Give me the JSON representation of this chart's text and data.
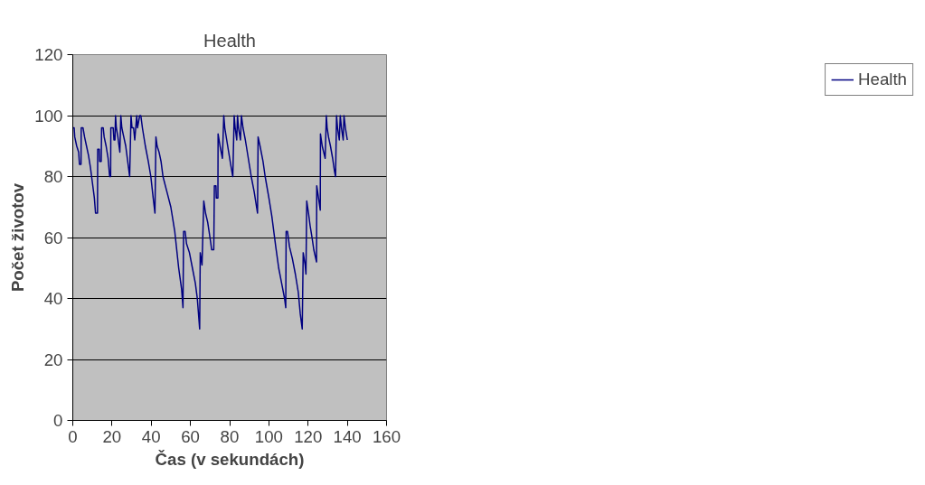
{
  "chart_data": {
    "type": "line",
    "title": "Health",
    "xlabel": "Čas (v sekundách)",
    "ylabel": "Počet životov",
    "xlim": [
      0,
      160
    ],
    "xticks": [
      0,
      20,
      40,
      60,
      80,
      100,
      120,
      140,
      160
    ],
    "ylim": [
      0,
      120
    ],
    "yticks": [
      0,
      20,
      40,
      60,
      80,
      100,
      120
    ],
    "grid": "y",
    "legend": "right",
    "marker": "none",
    "line_style": "solid",
    "series": [
      {
        "name": "Health",
        "color": "#000080",
        "x": [
          0,
          0.7,
          1,
          2,
          3,
          3.4,
          4.2,
          4.3,
          5.2,
          6,
          7,
          8,
          9,
          10,
          11,
          11.6,
          12.6,
          12.7,
          13.5,
          13.7,
          14.5,
          14.7,
          15.5,
          16,
          17,
          18,
          18.8,
          19.3,
          19.4,
          20.6,
          21,
          21.5,
          21.8,
          22.2,
          23,
          24,
          24.5,
          25,
          26,
          27,
          28,
          29,
          29.7,
          30.2,
          31,
          31.6,
          32.6,
          33,
          34.1,
          34.7,
          35.5,
          37,
          38.5,
          39.8,
          41,
          41.9,
          42.4,
          43,
          44,
          45,
          46,
          48,
          50,
          52,
          54,
          55.5,
          56.2,
          56.5,
          57.3,
          58,
          59.5,
          61,
          62.5,
          63.5,
          64.7,
          65,
          65.9,
          66.8,
          67.7,
          68.8,
          69.5,
          70.4,
          70.8,
          71.9,
          72.2,
          73,
          73.2,
          74,
          74.1,
          75.1,
          76.3,
          77,
          77.5,
          78.5,
          79.5,
          80.5,
          81.6,
          82.3,
          82.8,
          83.6,
          84,
          84.5,
          85.5,
          86,
          86.8,
          88,
          89.5,
          91,
          92.5,
          94.2,
          94.5,
          95.5,
          97,
          98.1,
          100,
          101.5,
          103.5,
          105,
          106.5,
          108,
          108.6,
          108.8,
          109.5,
          110.5,
          112,
          113.5,
          115,
          116,
          117,
          117.5,
          118.5,
          118.9,
          119.3,
          120.2,
          121,
          122,
          122.9,
          124.3,
          124.4,
          125.3,
          126.2,
          126.3,
          127.2,
          128.7,
          129.3,
          129.7,
          130.4,
          131.4,
          132.5,
          133.4,
          134,
          134.5,
          135,
          135.9,
          136.4,
          137,
          137.9,
          138.3,
          139,
          140
        ],
        "values": [
          96,
          96,
          93,
          90,
          88,
          84,
          84,
          96,
          96,
          93,
          90,
          87,
          83,
          78,
          73,
          68,
          68,
          89,
          89,
          85,
          85,
          96,
          96,
          93,
          90,
          86,
          80,
          80,
          96,
          96,
          92,
          92,
          100,
          96,
          93,
          88,
          100,
          96,
          93,
          90,
          85,
          80,
          100,
          96,
          96,
          92,
          100,
          96,
          100,
          100,
          96,
          90,
          85,
          80,
          73,
          68,
          93,
          90,
          88,
          85,
          80,
          75,
          70,
          62,
          50,
          43,
          37,
          62,
          62,
          58,
          55,
          50,
          45,
          40,
          30,
          55,
          51,
          72,
          68,
          65,
          62,
          58,
          56,
          56,
          77,
          77,
          73,
          73,
          94,
          90,
          86,
          100,
          96,
          92,
          88,
          84,
          80,
          100,
          96,
          92,
          100,
          96,
          92,
          100,
          96,
          92,
          86,
          80,
          75,
          68,
          93,
          90,
          85,
          80,
          73,
          67,
          57,
          50,
          45,
          40,
          37,
          62,
          62,
          57,
          53,
          48,
          42,
          35,
          30,
          55,
          51,
          48,
          72,
          68,
          64,
          60,
          56,
          52,
          77,
          73,
          69,
          94,
          90,
          86,
          100,
          96,
          93,
          90,
          86,
          82,
          80,
          100,
          96,
          92,
          100,
          96,
          92,
          100,
          96,
          92
        ]
      }
    ]
  }
}
